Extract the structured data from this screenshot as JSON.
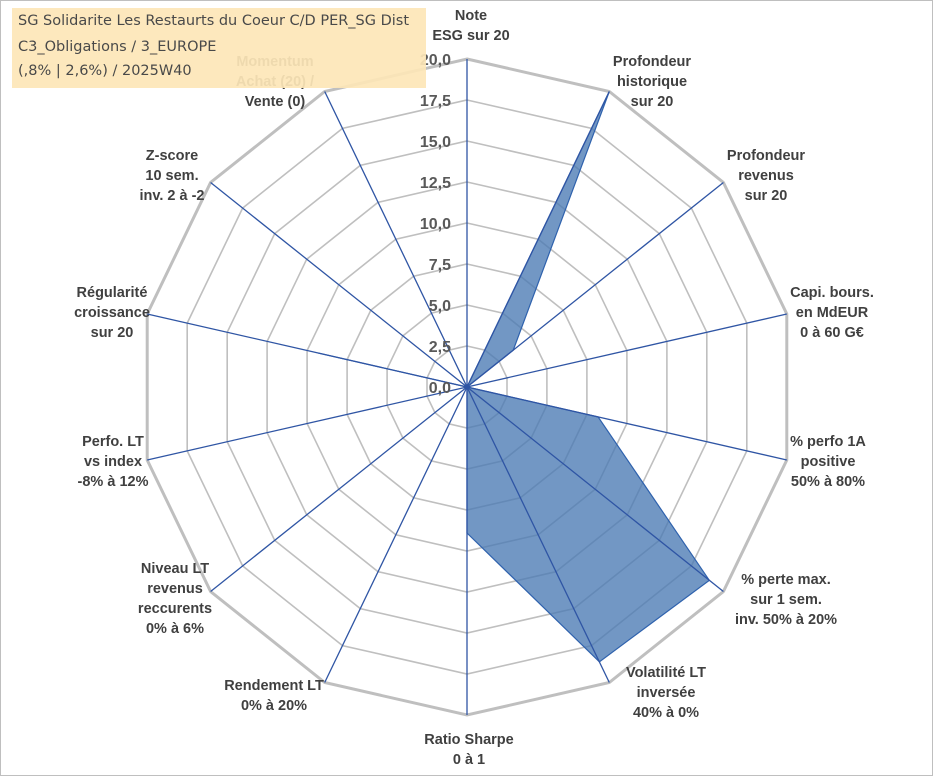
{
  "title": {
    "line1": "SG Solidarite Les Restaurts du Coeur C/D PER_SG Dist",
    "line2": "C3_Obligations / 3_EUROPE",
    "line3": "(,8% | 2,6%) / 2025W40"
  },
  "chart_data": {
    "type": "radar",
    "rmax": 20,
    "tick_step": 2.5,
    "tick_labels": [
      "0,0",
      "2,5",
      "5,0",
      "7,5",
      "10,0",
      "12,5",
      "15,0",
      "17,5",
      "20,0"
    ],
    "axes": [
      [
        "Note",
        "ESG sur 20"
      ],
      [
        "Profondeur",
        "historique",
        "sur 20"
      ],
      [
        "Profondeur",
        "revenus",
        "sur 20"
      ],
      [
        "Capi. bours.",
        "en MdEUR",
        "0 à 60 G€"
      ],
      [
        "% perfo 1A",
        "positive",
        "50% à 80%"
      ],
      [
        "% perte max.",
        "sur 1 sem.",
        "inv. 50% à 20%"
      ],
      [
        "Volatilité LT",
        "inversée",
        "40% à 0%"
      ],
      [
        "Ratio Sharpe",
        "0 à 1"
      ],
      [
        "Rendement LT",
        "0% à 20%"
      ],
      [
        "Niveau LT",
        "revenus",
        "reccurents",
        "0% à 6%"
      ],
      [
        "Perfo. LT",
        "vs index",
        "-8% à 12%"
      ],
      [
        "Régularité",
        "croissance",
        "sur 20"
      ],
      [
        "Z-score",
        "10 sem.",
        "inv. 2 à -2"
      ],
      [
        "Momentum",
        "Achat (20) /",
        "Vente (0)"
      ]
    ],
    "series": [
      {
        "values": [
          0,
          20,
          3.6,
          0,
          8.2,
          18.9,
          18.6,
          8.9,
          0,
          0,
          0,
          9.3,
          0,
          0
        ]
      }
    ],
    "colors": {
      "fill": "#4a7ab3",
      "stroke": "#2f62ad",
      "grid": "#bfbfbf",
      "spoke": "#2f55a4"
    }
  }
}
